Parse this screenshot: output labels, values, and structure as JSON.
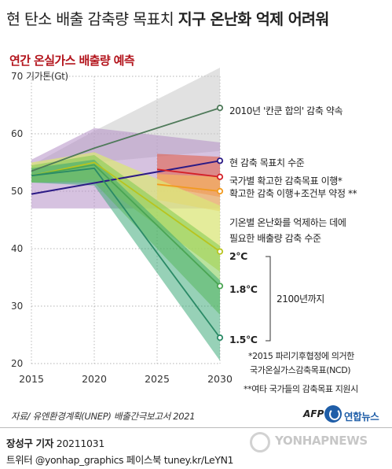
{
  "header": {
    "title_part1": "현 탄소 배출 감축량 목표치",
    "title_part2": "지구 온난화 억제 어려워",
    "subtitle": "연간 온실가스 배출량 예측"
  },
  "chart_data": {
    "type": "line",
    "title": "",
    "xlabel": "",
    "ylabel": "기가톤(Gt)",
    "unit": "기가톤(Gt)",
    "x_ticks": [
      2015,
      2020,
      2025,
      2030
    ],
    "y_ticks": [
      20,
      30,
      40,
      50,
      60,
      70
    ],
    "xlim": [
      2015,
      2030
    ],
    "ylim": [
      20,
      70
    ],
    "grid": true,
    "colors": {
      "cancun": "#4f7a5a",
      "current": "#2b1a85",
      "ndc": "#d42027",
      "ndc_plus": "#f29a1e",
      "deg2": "#b8c41e",
      "deg18": "#4aa553",
      "deg15": "#2a8a66"
    },
    "series": [
      {
        "key": "cancun",
        "name": "2010년 '칸쿤 합의' 감축 약속",
        "x": [
          2015,
          2020,
          2030
        ],
        "y": [
          53.5,
          57.5,
          64.5
        ]
      },
      {
        "key": "current",
        "name": "현 감축 목표치 수준",
        "x": [
          2015,
          2030
        ],
        "y": [
          49.5,
          55.3
        ]
      },
      {
        "key": "ndc",
        "name": "국가별 확고한 감축목표 이행*",
        "x": [
          2025,
          2030
        ],
        "y": [
          53.8,
          52.5
        ]
      },
      {
        "key": "ndc_plus",
        "name": "확고한 감축 이행+조건부 약정 **",
        "x": [
          2025,
          2030
        ],
        "y": [
          51.2,
          50.0
        ]
      },
      {
        "key": "deg2",
        "name": "2°C",
        "x": [
          2015,
          2020,
          2030
        ],
        "y": [
          52.7,
          55.0,
          39.5
        ]
      },
      {
        "key": "deg18",
        "name": "1.8°C",
        "x": [
          2015,
          2020,
          2030
        ],
        "y": [
          52.7,
          54.6,
          33.5
        ]
      },
      {
        "key": "deg15",
        "name": "1.5°C",
        "x": [
          2015,
          2020,
          2030
        ],
        "y": [
          52.7,
          54.0,
          24.5
        ]
      }
    ],
    "bands": [
      {
        "key": "cancun",
        "x": [
          2015,
          2020,
          2030
        ],
        "upper": [
          54.5,
          60.5,
          71.5
        ],
        "lower": [
          52.5,
          55.0,
          57.0
        ]
      },
      {
        "key": "current",
        "x": [
          2015,
          2020,
          2030
        ],
        "upper": [
          55.5,
          61.0,
          58.5
        ],
        "lower": [
          47.0,
          47.0,
          47.0
        ]
      },
      {
        "key": "ndc",
        "x": [
          2025,
          2030
        ],
        "upper": [
          56.5,
          56.0
        ],
        "lower": [
          51.0,
          49.0
        ]
      },
      {
        "key": "ndc_plus",
        "x": [
          2025,
          2030
        ],
        "upper": [
          53.0,
          52.5
        ],
        "lower": [
          48.5,
          46.5
        ]
      },
      {
        "key": "deg2",
        "x": [
          2015,
          2020,
          2030
        ],
        "upper": [
          55.0,
          56.8,
          47.5
        ],
        "lower": [
          51.5,
          52.0,
          36.0
        ]
      },
      {
        "key": "deg18",
        "x": [
          2015,
          2020,
          2030
        ],
        "upper": [
          54.5,
          56.3,
          40.5
        ],
        "lower": [
          51.5,
          51.5,
          28.5
        ]
      },
      {
        "key": "deg15",
        "x": [
          2015,
          2020,
          2030
        ],
        "upper": [
          54.0,
          55.5,
          34.5
        ],
        "lower": [
          51.5,
          51.0,
          20.5
        ]
      }
    ],
    "annotations": {
      "temp_group": "기온별 온난화를 억제하는 데에\n필요한 배출량 감축 수준",
      "period": "2100년까지",
      "note1": "*2015 파리기후협정에 의거한\n국가온실가스감축목표(NCD)",
      "note2": "**여타 국가들의 감축목표 지원시"
    }
  },
  "footer": {
    "source": "자료/ 유엔환경계획(UNEP) 배출간극보고서 2021",
    "afp": "AFP",
    "agency": "연합뉴스",
    "reporter": "장성구 기자",
    "date": "20211031",
    "social": "트위터 @yonhap_graphics  페이스북 tuney.kr/LeYN1",
    "watermark": "YONHAPNEWS"
  }
}
